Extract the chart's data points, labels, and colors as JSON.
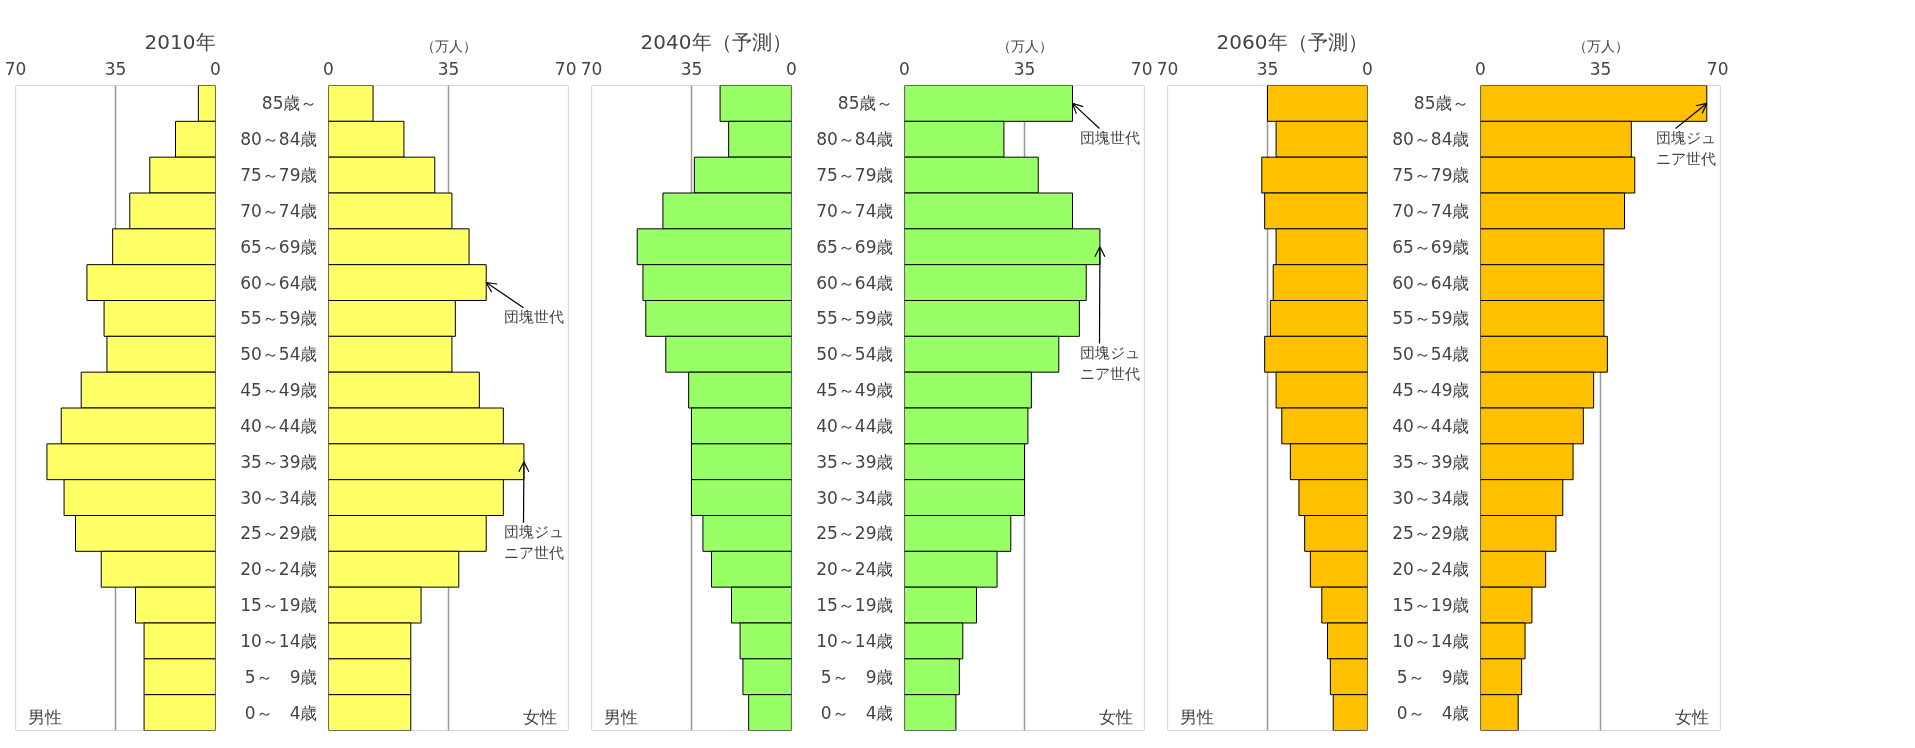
{
  "chart_data": [
    {
      "type": "bar",
      "orientation": "horizontal",
      "title": "2010年",
      "categories": [
        null,
        null,
        null,
        null,
        null,
        null,
        null,
        null,
        null,
        null,
        null,
        null,
        null,
        null,
        null,
        null,
        null,
        null
      ],
      "values": [
        6,
        14,
        23,
        30,
        36,
        45,
        39,
        38,
        47,
        54,
        59,
        53,
        49,
        40,
        28,
        25,
        25,
        25
      ],
      "color": "#ffff66",
      "xlim": [
        70,
        0
      ],
      "xticks": [
        70,
        35,
        0
      ],
      "grid": "x",
      "tick_labels": "x",
      "annotations": [
        "男性"
      ]
    },
    {
      "type": "bar",
      "orientation": "horizontal",
      "categories": [
        "85歳～",
        "80～84歳",
        "75～79歳",
        "70～74歳",
        "65～69歳",
        "60～64歳",
        "55～59歳",
        "50～54歳",
        "45～49歳",
        "40～44歳",
        "35～39歳",
        "30～34歳",
        "25～29歳",
        "20～24歳",
        "15～19歳",
        "10～14歳",
        "5～　9歳",
        "0～　4歳"
      ],
      "values": [
        13,
        22,
        31,
        36,
        41,
        46,
        37,
        36,
        44,
        51,
        57,
        51,
        46,
        38,
        27,
        24,
        24,
        24
      ],
      "color": "#ffff66",
      "xlim": [
        0,
        70
      ],
      "xticks": [
        0,
        35,
        70
      ],
      "grid": "x",
      "xlabel": "（万人）",
      "annotations": [
        "女性",
        {
          "text": "団塊世代",
          "x": 46,
          "y": "60～64歳"
        },
        {
          "text": "団塊ジュニア世代",
          "x": 57,
          "y": "35～39歳"
        }
      ]
    },
    {
      "type": "bar",
      "orientation": "horizontal",
      "title": "2040年（予測）",
      "categories": [
        null,
        null,
        null,
        null,
        null,
        null,
        null,
        null,
        null,
        null,
        null,
        null,
        null,
        null,
        null,
        null,
        null,
        null
      ],
      "values": [
        25,
        22,
        34,
        45,
        54,
        52,
        51,
        44,
        36,
        35,
        35,
        35,
        31,
        28,
        21,
        18,
        17,
        15
      ],
      "color": "#99ff66",
      "xlim": [
        70,
        0
      ],
      "xticks": [
        70,
        35,
        0
      ],
      "grid": "x",
      "tick_labels": "x",
      "annotations": [
        "男性"
      ]
    },
    {
      "type": "bar",
      "orientation": "horizontal",
      "categories": [
        "85歳～",
        "80～84歳",
        "75～79歳",
        "70～74歳",
        "65～69歳",
        "60～64歳",
        "55～59歳",
        "50～54歳",
        "45～49歳",
        "40～44歳",
        "35～39歳",
        "30～34歳",
        "25～29歳",
        "20～24歳",
        "15～19歳",
        "10～14歳",
        "5～　9歳",
        "0～　4歳"
      ],
      "values": [
        49,
        29,
        39,
        49,
        57,
        53,
        51,
        45,
        37,
        36,
        35,
        35,
        31,
        27,
        21,
        17,
        16,
        15
      ],
      "color": "#99ff66",
      "xlim": [
        0,
        70
      ],
      "xticks": [
        0,
        35,
        70
      ],
      "grid": "x",
      "xlabel": "（万人）",
      "annotations": [
        "女性",
        {
          "text": "団塊世代",
          "x": 49,
          "y": "85歳～"
        },
        {
          "text": "団塊ジュニア世代",
          "x": 57,
          "y": "65～69歳"
        }
      ]
    },
    {
      "type": "bar",
      "orientation": "horizontal",
      "title": "2060年（予測）",
      "categories": [
        null,
        null,
        null,
        null,
        null,
        null,
        null,
        null,
        null,
        null,
        null,
        null,
        null,
        null,
        null,
        null,
        null,
        null
      ],
      "values": [
        35,
        32,
        37,
        36,
        32,
        33,
        34,
        36,
        32,
        30,
        27,
        24,
        22,
        20,
        16,
        14,
        13,
        12
      ],
      "color": "#ffc000",
      "xlim": [
        70,
        0
      ],
      "xticks": [
        70,
        35,
        0
      ],
      "grid": "x",
      "tick_labels": "x",
      "annotations": [
        "男性"
      ]
    },
    {
      "type": "bar",
      "orientation": "horizontal",
      "categories": [
        "85歳～",
        "80～84歳",
        "75～79歳",
        "70～74歳",
        "65～69歳",
        "60～64歳",
        "55～59歳",
        "50～54歳",
        "45～49歳",
        "40～44歳",
        "35～39歳",
        "30～34歳",
        "25～29歳",
        "20～24歳",
        "15～19歳",
        "10～14歳",
        "5～　9歳",
        "0～　4歳"
      ],
      "values": [
        66,
        44,
        45,
        42,
        36,
        36,
        36,
        37,
        33,
        30,
        27,
        24,
        22,
        19,
        15,
        13,
        12,
        11
      ],
      "color": "#ffc000",
      "xlim": [
        0,
        70
      ],
      "xticks": [
        0,
        35,
        70
      ],
      "grid": "x",
      "xlabel": "（万人）",
      "annotations": [
        "女性",
        {
          "text": "団塊ジュニア世代",
          "x": 66,
          "y": "85歳～"
        }
      ]
    }
  ]
}
